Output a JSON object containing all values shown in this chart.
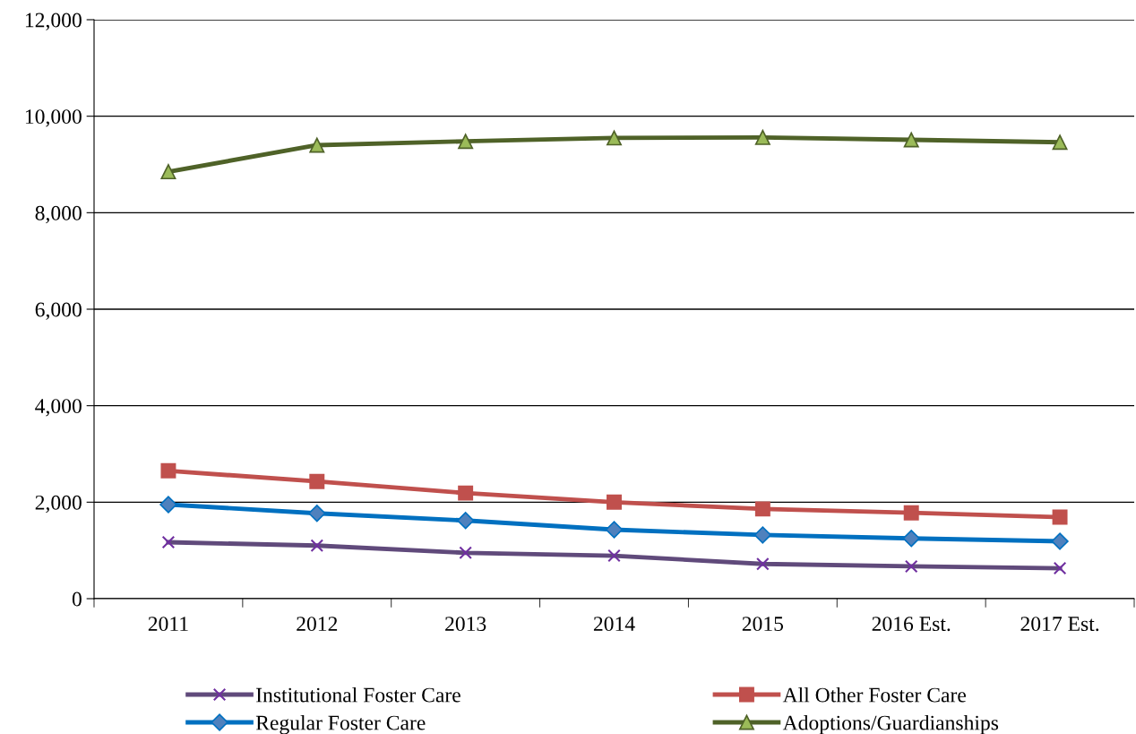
{
  "chart_data": {
    "type": "line",
    "categories": [
      "2011",
      "2012",
      "2013",
      "2014",
      "2015",
      "2016 Est.",
      "2017 Est."
    ],
    "series": [
      {
        "name": "Institutional Foster Care",
        "color": "#604a7b",
        "marker": "cross",
        "values": [
          1170,
          1100,
          950,
          890,
          720,
          670,
          630
        ]
      },
      {
        "name": "Regular Foster Care",
        "color": "#0070c0",
        "marker": "diamond",
        "values": [
          1950,
          1770,
          1620,
          1430,
          1320,
          1250,
          1190
        ]
      },
      {
        "name": "All Other Foster Care",
        "color": "#c0504d",
        "marker": "square",
        "values": [
          2650,
          2430,
          2190,
          2000,
          1860,
          1780,
          1690
        ]
      },
      {
        "name": "Adoptions/Guardianships",
        "color": "#4f6228",
        "marker": "triangle",
        "values": [
          8850,
          9400,
          9480,
          9550,
          9560,
          9510,
          9460
        ]
      }
    ],
    "ylim": [
      0,
      12000
    ],
    "yticks": [
      {
        "value": 0,
        "label": "0"
      },
      {
        "value": 2000,
        "label": "2,000"
      },
      {
        "value": 4000,
        "label": "4,000"
      },
      {
        "value": 6000,
        "label": "6,000"
      },
      {
        "value": 8000,
        "label": "8,000"
      },
      {
        "value": 10000,
        "label": "10,000"
      },
      {
        "value": 12000,
        "label": "12,000"
      }
    ],
    "grid": "y",
    "legend": "bottom",
    "line_style": "solid"
  }
}
